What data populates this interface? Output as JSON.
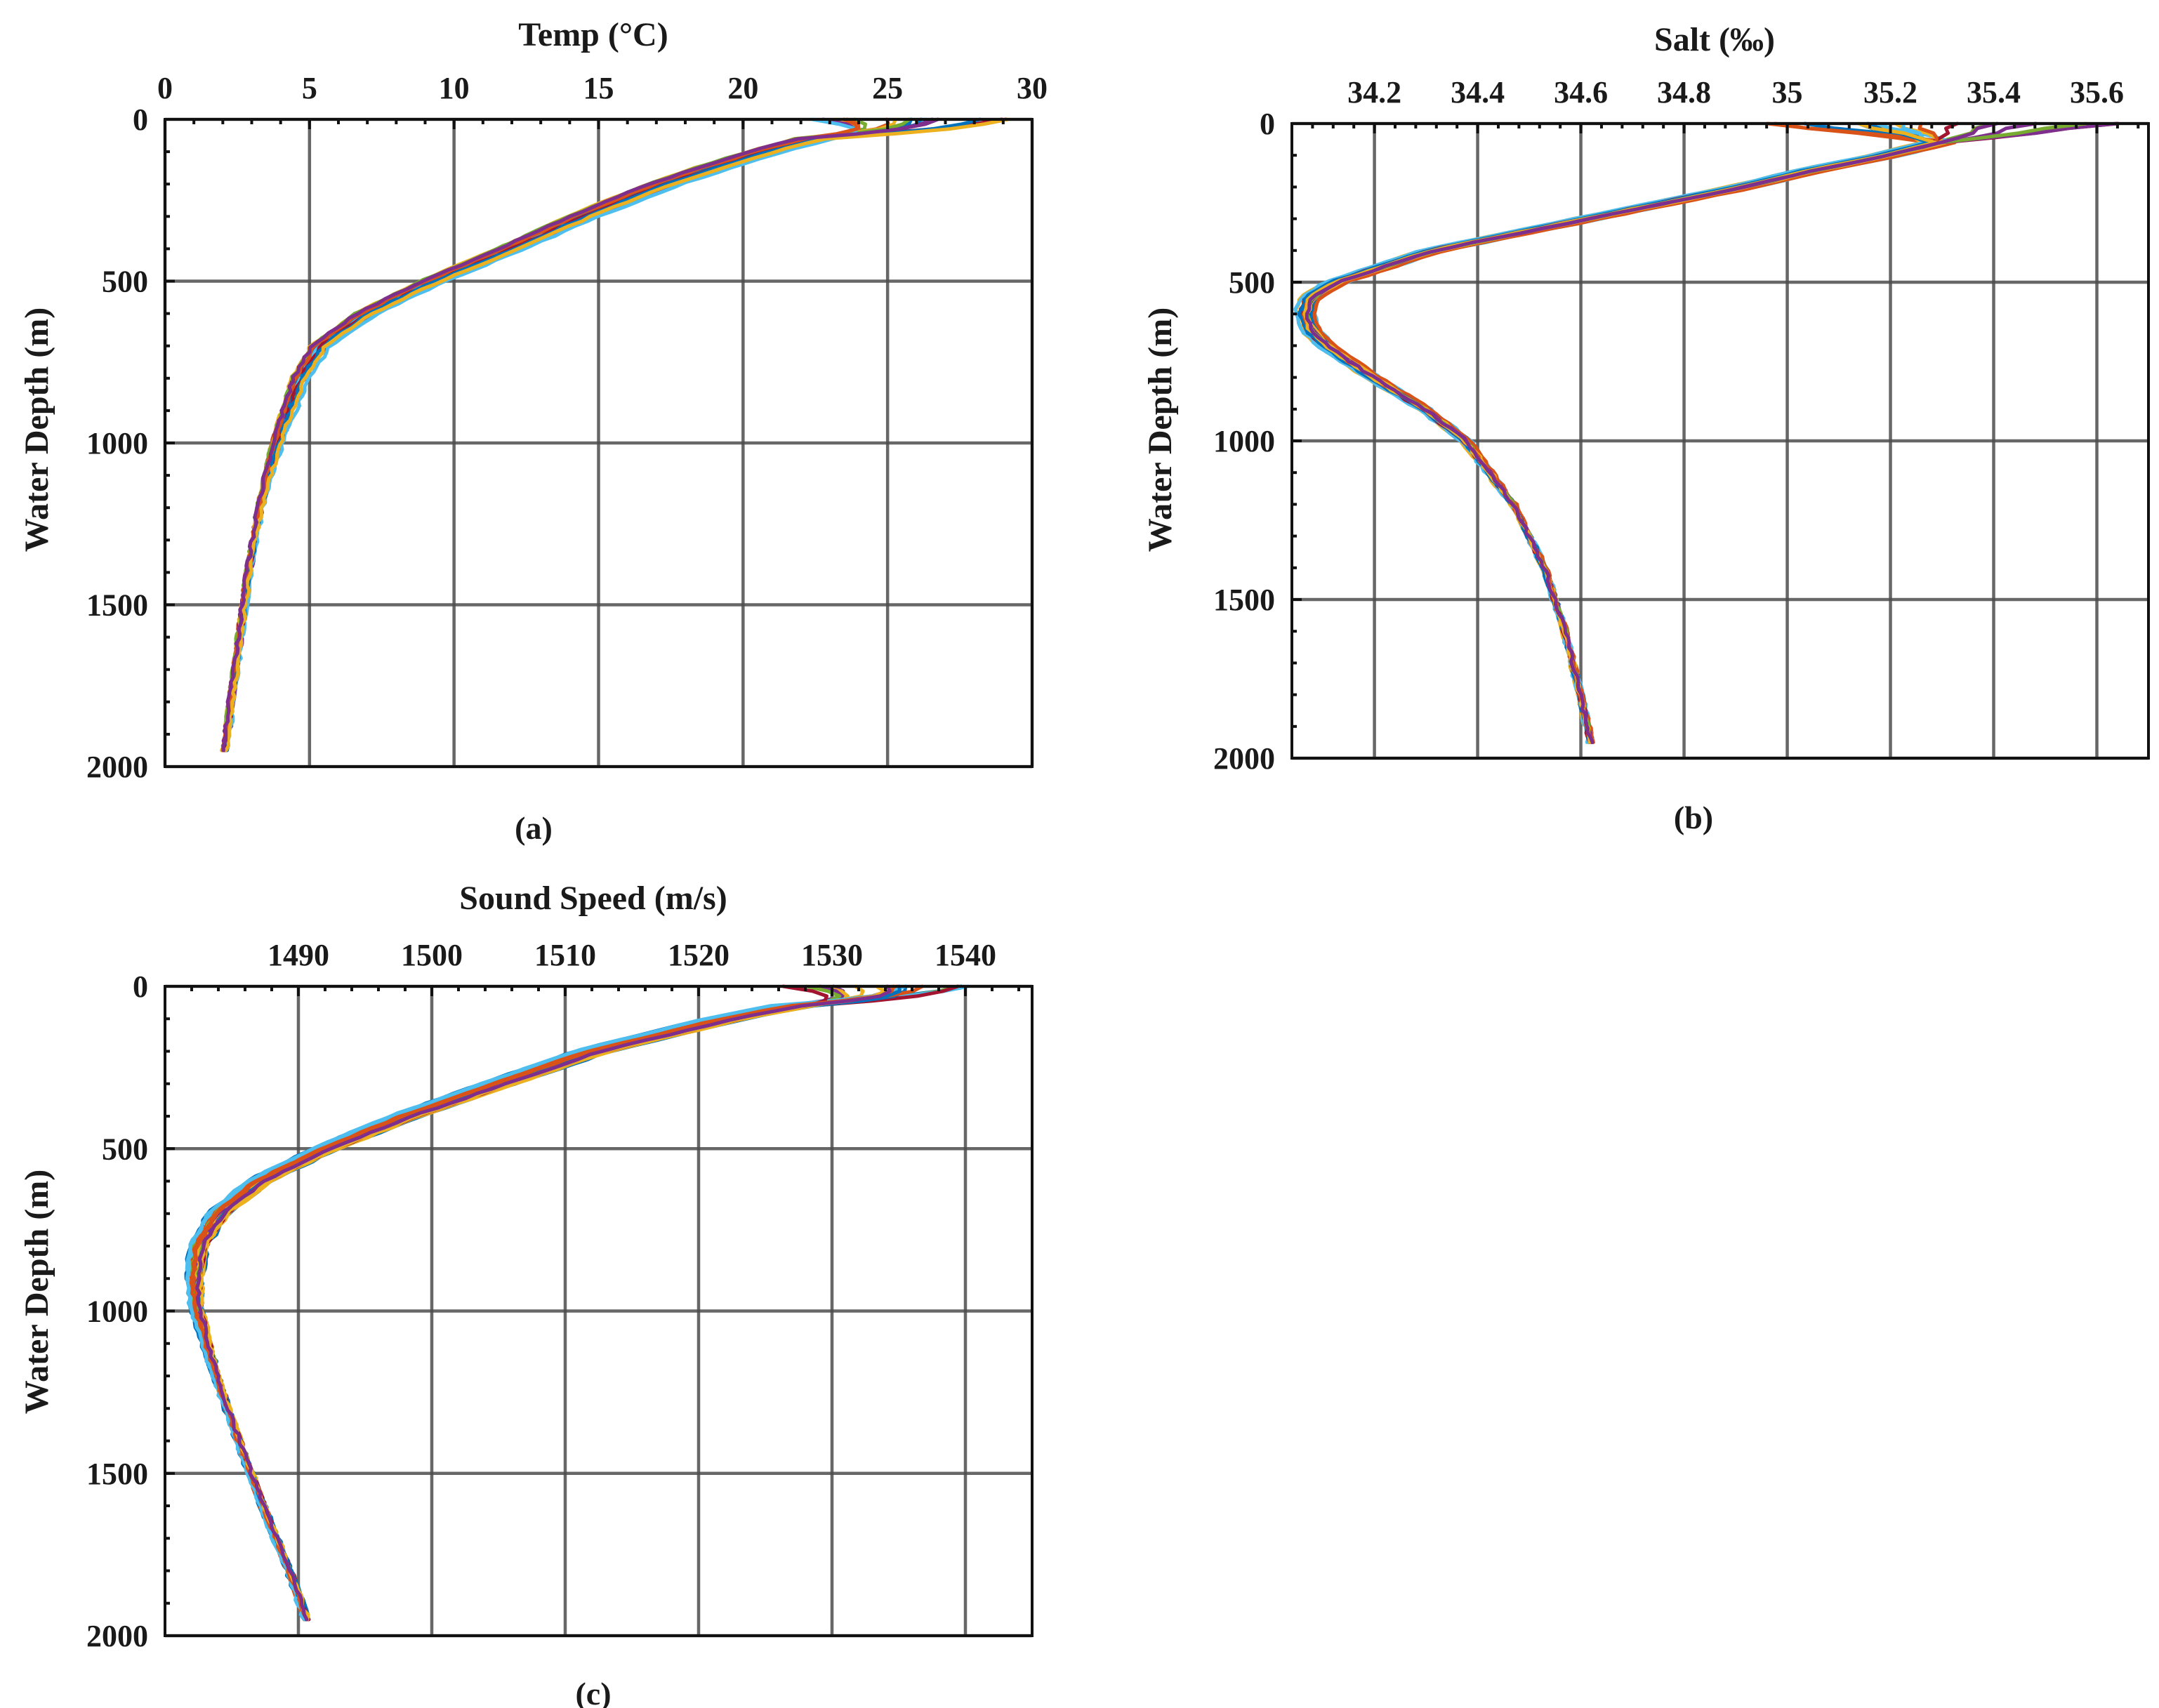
{
  "chart_data": [
    {
      "id": "a",
      "type": "line",
      "title": "Temp (°C)",
      "xlabel": "Temp (°C)",
      "ylabel": "Water Depth (m)",
      "caption": "(a)",
      "xlim": [
        0,
        30
      ],
      "ylim": [
        0,
        2000
      ],
      "y_reversed": true,
      "x_axis_position": "top",
      "grid": true,
      "xticks": [
        0,
        5,
        10,
        15,
        20,
        25,
        30
      ],
      "xtick_labels": [
        "0",
        "5",
        "10",
        "15",
        "20",
        "25",
        "30"
      ],
      "yticks": [
        0,
        500,
        1000,
        1500,
        2000
      ],
      "ytick_labels": [
        "0",
        "500",
        "1000",
        "1500",
        "2000"
      ],
      "profile_count": 18,
      "representative_profile": {
        "depth": [
          0,
          30,
          60,
          100,
          150,
          200,
          300,
          400,
          500,
          600,
          700,
          800,
          900,
          1000,
          1200,
          1400,
          1600,
          1800,
          1950
        ],
        "values": [
          26.5,
          24.8,
          22.5,
          20.8,
          19.0,
          17.3,
          14.5,
          12.0,
          9.3,
          7.0,
          5.4,
          4.7,
          4.3,
          3.9,
          3.3,
          2.9,
          2.6,
          2.3,
          2.1
        ]
      },
      "surface_range": [
        22,
        29.5
      ]
    },
    {
      "id": "b",
      "type": "line",
      "title": "Salt (‰)",
      "xlabel": "Salt (‰)",
      "ylabel": "Water Depth (m)",
      "caption": "(b)",
      "xlim": [
        34.04,
        35.7
      ],
      "ylim": [
        0,
        2000
      ],
      "y_reversed": true,
      "x_axis_position": "top",
      "grid": true,
      "xticks": [
        34.2,
        34.4,
        34.6,
        34.8,
        35,
        35.2,
        35.4,
        35.6
      ],
      "xtick_labels": [
        "34.2",
        "34.4",
        "34.6",
        "34.8",
        "35",
        "35.2",
        "35.4",
        "35.6"
      ],
      "yticks": [
        0,
        500,
        1000,
        1500,
        2000
      ],
      "ytick_labels": [
        "0",
        "500",
        "1000",
        "1500",
        "2000"
      ],
      "profile_count": 18,
      "representative_profile": {
        "depth": [
          0,
          30,
          60,
          100,
          150,
          200,
          300,
          400,
          500,
          550,
          600,
          650,
          700,
          800,
          900,
          1000,
          1200,
          1400,
          1600,
          1800,
          1950
        ],
        "values": [
          35.2,
          35.32,
          35.3,
          35.2,
          35.05,
          34.92,
          34.62,
          34.32,
          34.13,
          34.08,
          34.07,
          34.08,
          34.11,
          34.2,
          34.3,
          34.38,
          34.47,
          34.53,
          34.57,
          34.6,
          34.62
        ]
      },
      "surface_range": [
        34.95,
        35.68
      ]
    },
    {
      "id": "c",
      "type": "line",
      "title": "Sound Speed (m/s)",
      "xlabel": "Sound Speed (m/s)",
      "ylabel": "Water Depth (m)",
      "caption": "(c)",
      "xlim": [
        1480,
        1545
      ],
      "ylim": [
        0,
        2000
      ],
      "y_reversed": true,
      "x_axis_position": "top",
      "grid": true,
      "xticks": [
        1490,
        1500,
        1510,
        1520,
        1530,
        1540
      ],
      "xtick_labels": [
        "1490",
        "1500",
        "1510",
        "1520",
        "1530",
        "1540"
      ],
      "yticks": [
        0,
        500,
        1000,
        1500,
        2000
      ],
      "ytick_labels": [
        "0",
        "500",
        "1000",
        "1500",
        "2000"
      ],
      "profile_count": 18,
      "representative_profile": {
        "depth": [
          0,
          30,
          60,
          100,
          150,
          200,
          300,
          400,
          500,
          600,
          700,
          800,
          900,
          1000,
          1200,
          1400,
          1600,
          1800,
          1950
        ],
        "values": [
          1536,
          1532,
          1527,
          1522,
          1517,
          1512,
          1505,
          1498,
          1492,
          1487,
          1484,
          1482.5,
          1482.2,
          1482.4,
          1483.8,
          1485.5,
          1487.3,
          1489.3,
          1490.6
        ]
      },
      "surface_range": [
        1526,
        1541
      ]
    }
  ],
  "series_colors": [
    "#0072BD",
    "#D95319",
    "#EDB120",
    "#7E2F8E",
    "#77AC30",
    "#4DBEEE",
    "#A2142F"
  ]
}
